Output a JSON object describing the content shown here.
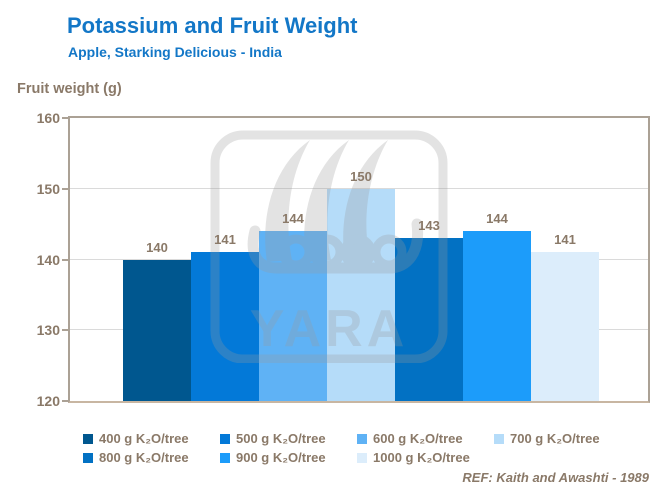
{
  "chart_data": {
    "type": "bar",
    "title": "Potassium and Fruit Weight",
    "subtitle": "Apple, Starking Delicious - India",
    "ylabel": "Fruit weight (g)",
    "ylim": [
      120,
      160
    ],
    "yticks": [
      120,
      130,
      140,
      150,
      160
    ],
    "categories": [
      "400 g K₂O/tree",
      "500 g K₂O/tree",
      "600 g K₂O/tree",
      "700 g K₂O/tree",
      "800 g K₂O/tree",
      "900 g K₂O/tree",
      "1000 g K₂O/tree"
    ],
    "values": [
      140,
      141,
      144,
      150,
      143,
      144,
      141
    ],
    "bar_colors": [
      "#00578F",
      "#0379D8",
      "#5FB2F5",
      "#B5DCF9",
      "#0271C3",
      "#1C9CFA",
      "#DCEDFB"
    ],
    "grid": "horizontal",
    "legend_position": "bottom",
    "reference": "REF: Kaith and Awashti - 1989",
    "watermark": "YARA",
    "colors": {
      "title_blue": "#1377C7",
      "axis_text_brown": "#8A7968",
      "plot_border": "#ABA195",
      "baseline": "#C8B6A2",
      "gridline": "#DADADA",
      "watermark_gray": "#9A9A9A"
    }
  }
}
